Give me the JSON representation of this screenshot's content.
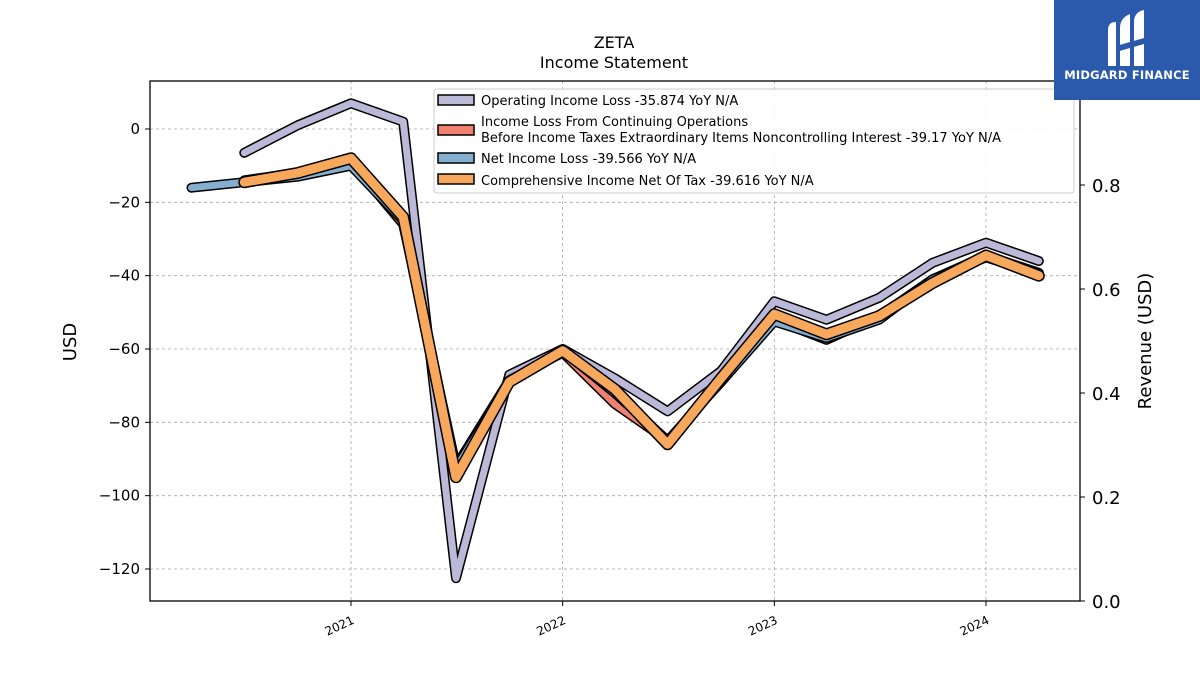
{
  "brand": {
    "name": "MIDGARD FINANCE",
    "color": "#2b5aad",
    "icon": "midgard-logo-icon"
  },
  "chart_data": {
    "type": "line",
    "title": "ZETA",
    "subtitle": "Income Statement",
    "ylabel": "USD",
    "y2label": "Revenue (USD)",
    "ylim": [
      -128,
      13
    ],
    "y2lim": [
      0.0,
      1.0
    ],
    "yticks": [
      "0",
      "−20",
      "−40",
      "−60",
      "−80",
      "−100",
      "−120"
    ],
    "y2ticks": [
      "0.0",
      "0.2",
      "0.4",
      "0.6",
      "0.8"
    ],
    "xticks": [
      "2021",
      "2022",
      "2023",
      "2024"
    ],
    "grid": true,
    "legend_position": "top-center",
    "series": [
      {
        "name": "Operating Income Loss  -35.874 YoY N/A",
        "color": "#bcb8d8",
        "points": [
          [
            "2020-07-01",
            -6.5
          ],
          [
            "2020-10-01",
            1.0
          ],
          [
            "2021-01-01",
            7.0
          ],
          [
            "2021-04-01",
            2.0
          ],
          [
            "2021-07-01",
            -122.5
          ],
          [
            "2021-10-01",
            -67.0
          ],
          [
            "2022-01-01",
            -60.0
          ],
          [
            "2022-04-01",
            -68.0
          ],
          [
            "2022-07-01",
            -77.0
          ],
          [
            "2022-10-01",
            -66.0
          ],
          [
            "2023-01-01",
            -47.0
          ],
          [
            "2023-04-01",
            -52.0
          ],
          [
            "2023-07-01",
            -46.0
          ],
          [
            "2023-10-01",
            -36.5
          ],
          [
            "2024-01-01",
            -31.0
          ],
          [
            "2024-04-01",
            -36.0
          ]
        ]
      },
      {
        "name_line1": "Income Loss From Continuing Operations",
        "name": "Before Income Taxes Extraordinary Items Noncontrolling Interest  -39.17 YoY N/A",
        "color": "#f08070",
        "points": [
          [
            "2020-07-01",
            -14.0
          ],
          [
            "2020-10-01",
            -12.0
          ],
          [
            "2021-01-01",
            -9.0
          ],
          [
            "2021-04-01",
            -26.0
          ],
          [
            "2021-07-01",
            -92.0
          ],
          [
            "2021-10-01",
            -68.5
          ],
          [
            "2022-01-01",
            -61.0
          ],
          [
            "2022-04-01",
            -75.0
          ],
          [
            "2022-07-01",
            -85.0
          ],
          [
            "2022-10-01",
            -69.0
          ],
          [
            "2023-01-01",
            -52.0
          ],
          [
            "2023-04-01",
            -57.5
          ],
          [
            "2023-07-01",
            -51.0
          ],
          [
            "2023-10-01",
            -41.0
          ],
          [
            "2024-01-01",
            -34.5
          ],
          [
            "2024-04-01",
            -39.2
          ]
        ]
      },
      {
        "name": "Net Income Loss  -39.566 YoY N/A",
        "color": "#85afd0",
        "points": [
          [
            "2020-04-01",
            -16.0
          ],
          [
            "2020-07-01",
            -14.5
          ],
          [
            "2020-10-01",
            -13.0
          ],
          [
            "2021-01-01",
            -10.0
          ],
          [
            "2021-04-01",
            -25.0
          ],
          [
            "2021-07-01",
            -92.5
          ],
          [
            "2021-10-01",
            -69.0
          ],
          [
            "2022-01-01",
            -60.5
          ],
          [
            "2022-04-01",
            -72.0
          ],
          [
            "2022-07-01",
            -85.0
          ],
          [
            "2022-10-01",
            -69.0
          ],
          [
            "2023-01-01",
            -52.5
          ],
          [
            "2023-04-01",
            -57.0
          ],
          [
            "2023-07-01",
            -52.0
          ],
          [
            "2023-10-01",
            -41.0
          ],
          [
            "2024-01-01",
            -35.0
          ],
          [
            "2024-04-01",
            -39.5
          ]
        ]
      },
      {
        "name": "Comprehensive Income Net Of Tax  -39.616 YoY N/A",
        "color": "#f8a85c",
        "points": [
          [
            "2020-07-01",
            -14.5
          ],
          [
            "2020-10-01",
            -12.0
          ],
          [
            "2021-01-01",
            -8.0
          ],
          [
            "2021-04-01",
            -24.0
          ],
          [
            "2021-07-01",
            -95.0
          ],
          [
            "2021-10-01",
            -69.0
          ],
          [
            "2022-01-01",
            -60.5
          ],
          [
            "2022-04-01",
            -71.0
          ],
          [
            "2022-07-01",
            -86.0
          ],
          [
            "2022-10-01",
            -68.0
          ],
          [
            "2023-01-01",
            -50.5
          ],
          [
            "2023-04-01",
            -56.0
          ],
          [
            "2023-07-01",
            -51.0
          ],
          [
            "2023-10-01",
            -42.0
          ],
          [
            "2024-01-01",
            -34.5
          ],
          [
            "2024-04-01",
            -40.0
          ]
        ]
      }
    ]
  }
}
